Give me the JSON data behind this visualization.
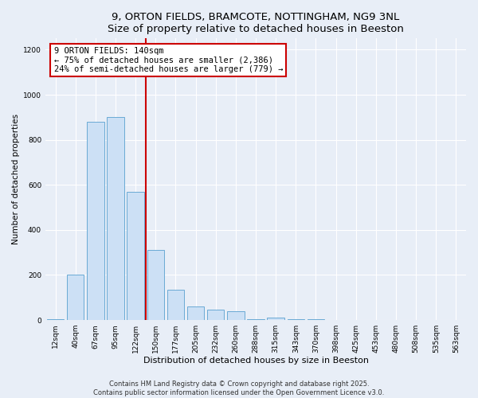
{
  "title": "9, ORTON FIELDS, BRAMCOTE, NOTTINGHAM, NG9 3NL",
  "subtitle": "Size of property relative to detached houses in Beeston",
  "xlabel": "Distribution of detached houses by size in Beeston",
  "ylabel": "Number of detached properties",
  "bar_labels": [
    "12sqm",
    "40sqm",
    "67sqm",
    "95sqm",
    "122sqm",
    "150sqm",
    "177sqm",
    "205sqm",
    "232sqm",
    "260sqm",
    "288sqm",
    "315sqm",
    "343sqm",
    "370sqm",
    "398sqm",
    "425sqm",
    "453sqm",
    "480sqm",
    "508sqm",
    "535sqm",
    "563sqm"
  ],
  "bar_values": [
    5,
    200,
    880,
    900,
    570,
    310,
    135,
    60,
    48,
    38,
    5,
    12,
    5,
    5,
    0,
    0,
    0,
    0,
    0,
    0,
    0
  ],
  "bar_color": "#cce0f5",
  "bar_edgecolor": "#6aaad4",
  "vline_color": "#cc0000",
  "annotation_title": "9 ORTON FIELDS: 140sqm",
  "annotation_line1": "← 75% of detached houses are smaller (2,386)",
  "annotation_line2": "24% of semi-detached houses are larger (779) →",
  "annotation_box_edgecolor": "#cc0000",
  "annotation_bg": "#ffffff",
  "ylim": [
    0,
    1250
  ],
  "yticks": [
    0,
    200,
    400,
    600,
    800,
    1000,
    1200
  ],
  "background_color": "#e8eef7",
  "grid_color": "#ffffff",
  "footer1": "Contains HM Land Registry data © Crown copyright and database right 2025.",
  "footer2": "Contains public sector information licensed under the Open Government Licence v3.0.",
  "title_fontsize": 9.5,
  "xlabel_fontsize": 8,
  "ylabel_fontsize": 7.5,
  "tick_fontsize": 6.5,
  "annotation_fontsize": 7.5,
  "footer_fontsize": 6
}
